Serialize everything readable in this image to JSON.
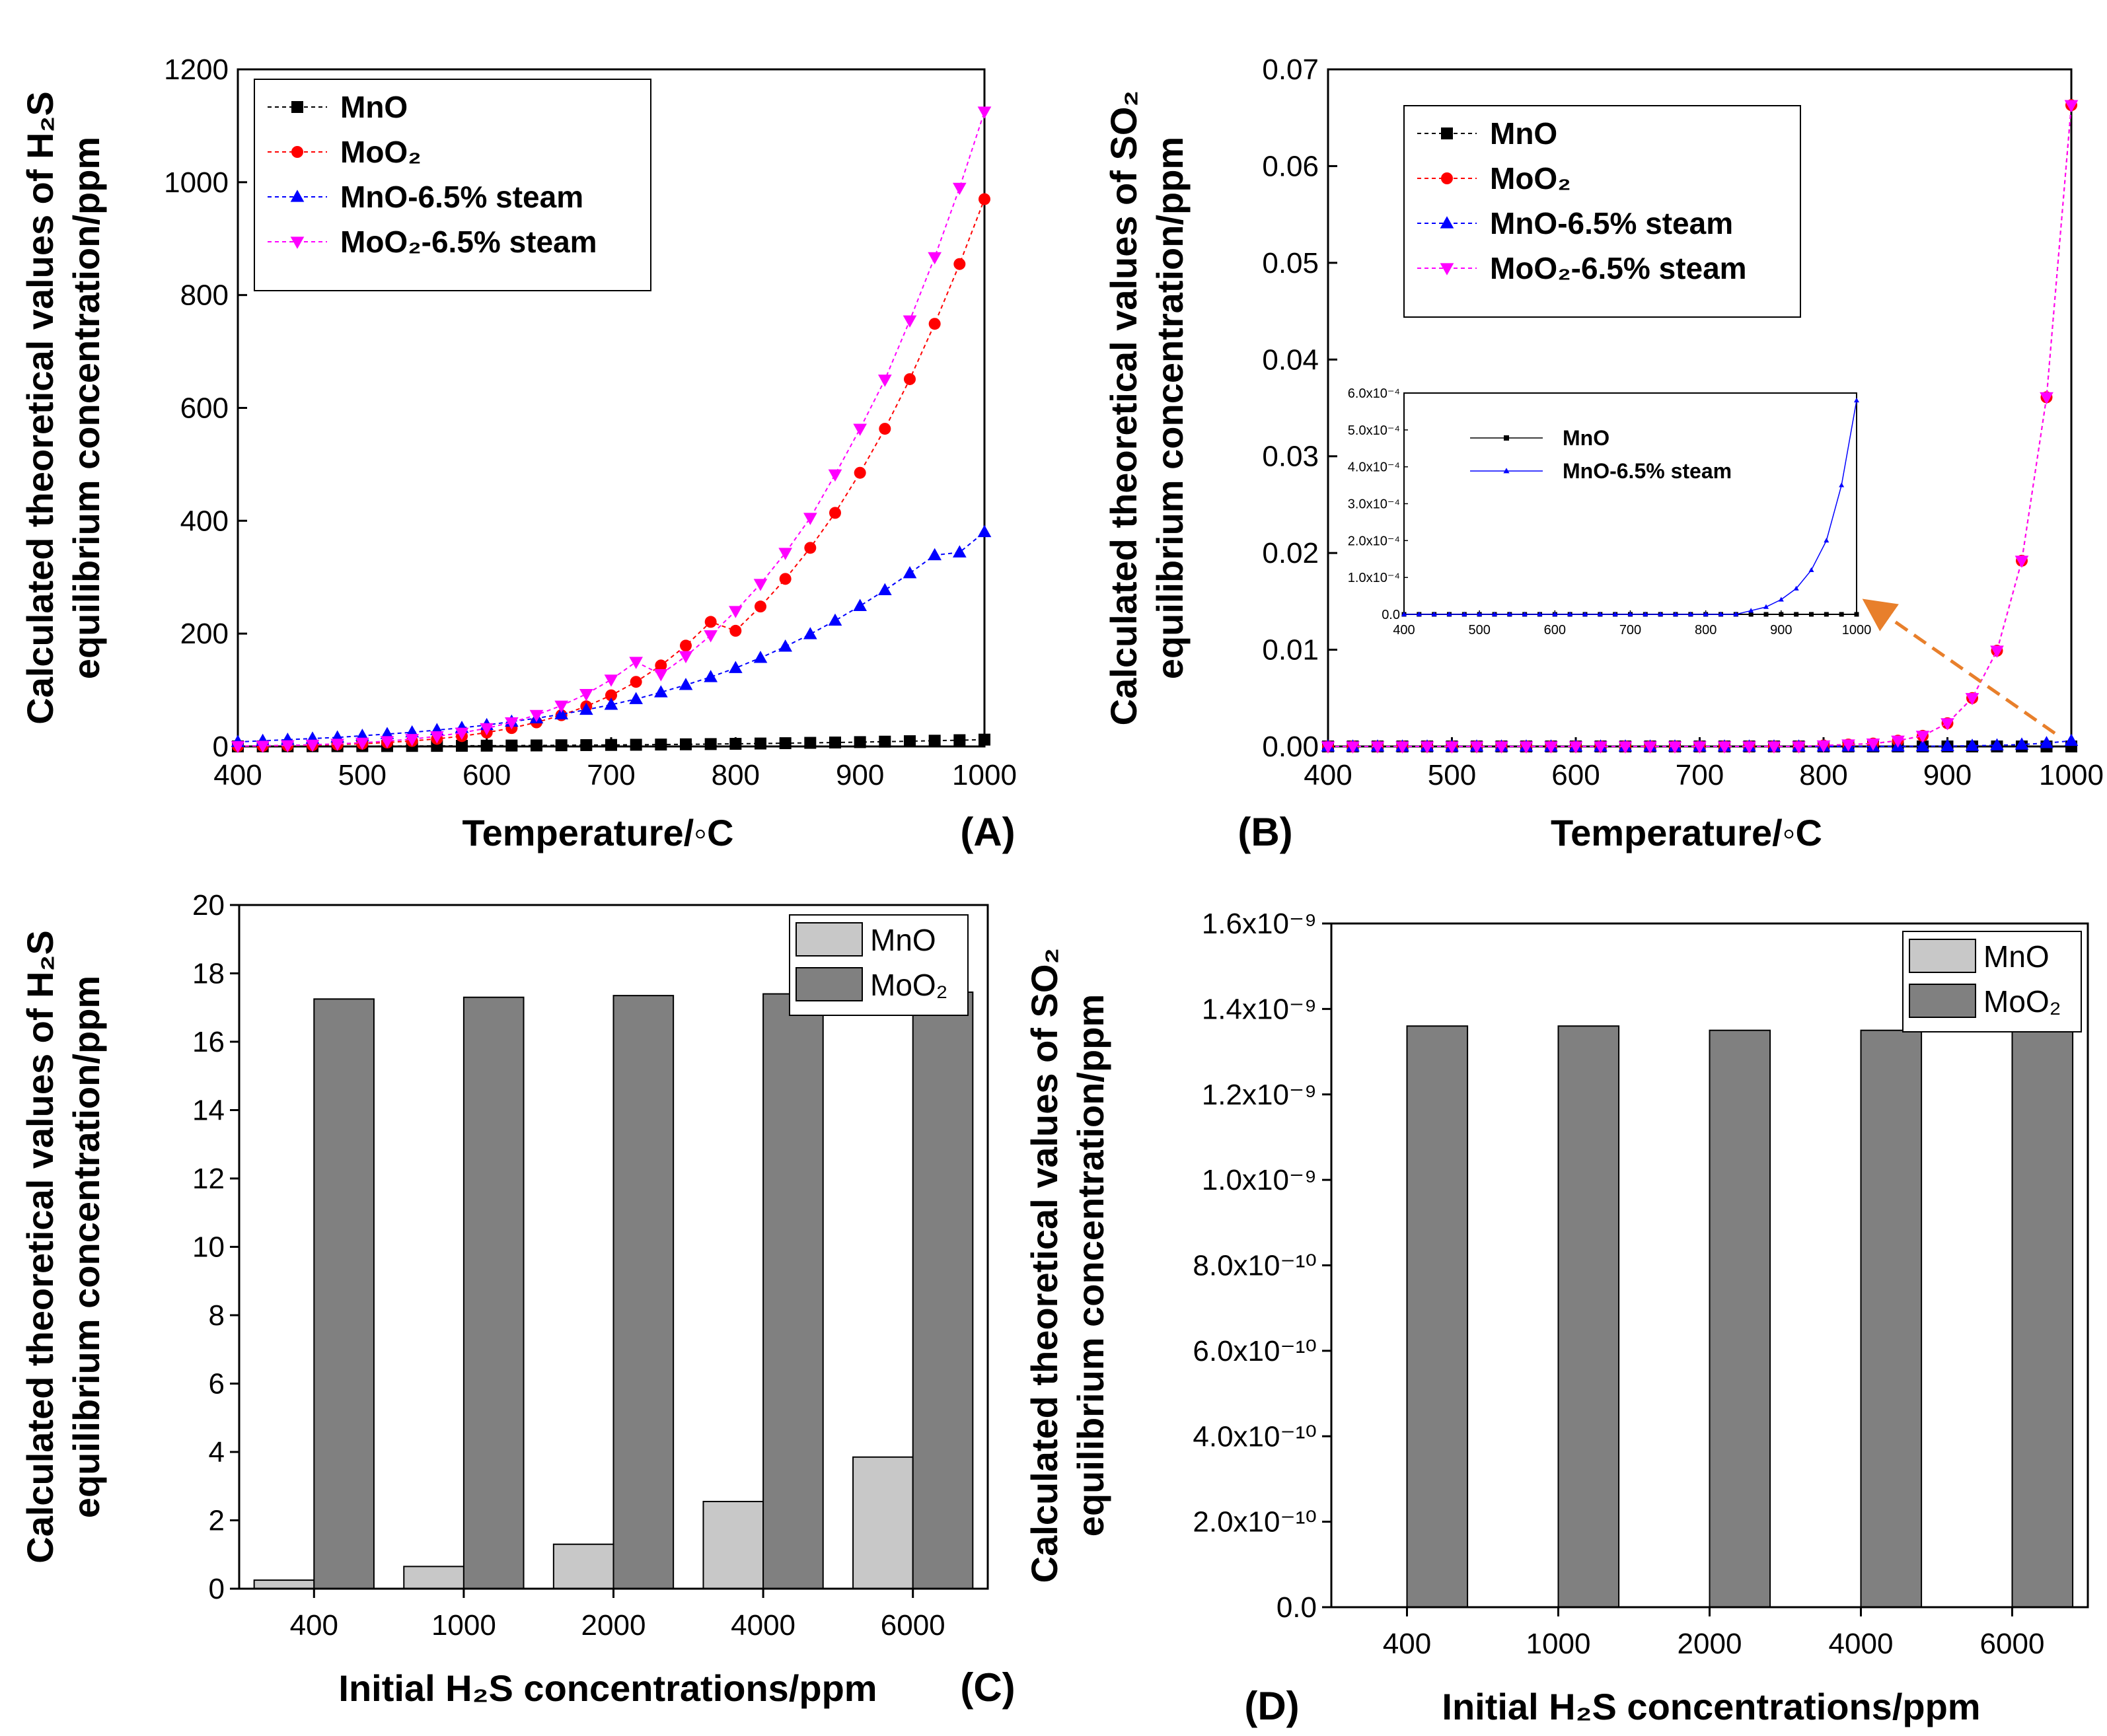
{
  "chart_data": [
    {
      "panel": "A",
      "type": "line",
      "panel_label": "(A)",
      "xlabel": "Temperature/◦C",
      "ylabel_line1": "Calculated theoretical values of H₂S",
      "ylabel_line2": "equilibrium concentration/ppm",
      "xlim": [
        400,
        1000
      ],
      "ylim": [
        0,
        1200
      ],
      "xticks": [
        "400",
        "500",
        "600",
        "700",
        "800",
        "900",
        "1000"
      ],
      "yticks": [
        "0",
        "200",
        "400",
        "600",
        "800",
        "1000",
        "1200"
      ],
      "x": [
        400,
        420,
        440,
        460,
        480,
        500,
        520,
        540,
        560,
        580,
        600,
        620,
        640,
        660,
        680,
        700,
        720,
        740,
        760,
        780,
        800,
        820,
        840,
        860,
        880,
        900,
        920,
        940,
        960,
        980,
        1000
      ],
      "legend": [
        "MnO",
        "MoO₂",
        "MnO-6.5% steam",
        "MoO₂-6.5% steam"
      ],
      "series": [
        {
          "name": "MnO",
          "color": "#000000",
          "marker": "square",
          "values": [
            0.1,
            0.2,
            0.3,
            0.4,
            0.5,
            0.6,
            0.7,
            0.9,
            1.0,
            1.2,
            1.4,
            1.6,
            1.8,
            2.1,
            2.4,
            2.7,
            3.0,
            3.4,
            3.8,
            4.2,
            4.7,
            5.2,
            5.8,
            6.4,
            7.0,
            7.7,
            8.5,
            9.3,
            10.2,
            11.1,
            12.1
          ]
        },
        {
          "name": "MoO₂",
          "color": "#ff0000",
          "marker": "circle",
          "values": [
            0.5,
            1.0,
            1.5,
            2.3,
            3.4,
            4.9,
            7.0,
            9.8,
            13.5,
            18.3,
            24.6,
            32.6,
            42.7,
            55.4,
            71.1,
            90.6,
            114.5,
            143.5,
            178.7,
            220.8,
            205,
            248,
            297,
            352,
            414,
            485,
            563,
            651,
            749,
            855,
            970
          ]
        },
        {
          "name": "MnO-6.5% steam",
          "color": "#0000ff",
          "marker": "triangle-up",
          "values": [
            8,
            10,
            12,
            14,
            16,
            19,
            22,
            25,
            29,
            33,
            38,
            44,
            50,
            57,
            65,
            74,
            84,
            96,
            109,
            123,
            139,
            157,
            177,
            199,
            223,
            249,
            277,
            307,
            339,
            344,
            380
          ]
        },
        {
          "name": "MoO₂-6.5% steam",
          "color": "#ff00ff",
          "marker": "triangle-down",
          "values": [
            0.6,
            1.2,
            2.0,
            3.1,
            4.6,
            6.6,
            9.4,
            13.1,
            17.9,
            24.2,
            32.3,
            42.7,
            55.8,
            72.3,
            92.9,
            118.4,
            149.8,
            128,
            160,
            197,
            240,
            288,
            343,
            405,
            482,
            563,
            650,
            755,
            867,
            990,
            1125
          ]
        }
      ]
    },
    {
      "panel": "B",
      "type": "line",
      "panel_label": "(B)",
      "xlabel": "Temperature/◦C",
      "ylabel_line1": "Calculated theoretical values of SO₂",
      "ylabel_line2": "equilibrium concentration/ppm",
      "xlim": [
        400,
        1000
      ],
      "ylim": [
        0,
        0.07
      ],
      "xticks": [
        "400",
        "500",
        "600",
        "700",
        "800",
        "900",
        "1000"
      ],
      "yticks": [
        "0.00",
        "0.01",
        "0.02",
        "0.03",
        "0.04",
        "0.05",
        "0.06",
        "0.07"
      ],
      "x": [
        400,
        420,
        440,
        460,
        480,
        500,
        520,
        540,
        560,
        580,
        600,
        620,
        640,
        660,
        680,
        700,
        720,
        740,
        760,
        780,
        800,
        820,
        840,
        860,
        880,
        900,
        920,
        940,
        960,
        980,
        1000
      ],
      "legend": [
        "MnO",
        "MoO₂",
        "MnO-6.5% steam",
        "MoO₂-6.5% steam"
      ],
      "series": [
        {
          "name": "MnO",
          "color": "#000000",
          "marker": "square",
          "values": [
            0,
            0,
            0,
            0,
            0,
            0,
            0,
            0,
            0,
            0,
            0,
            0,
            0,
            0,
            0,
            0,
            0,
            0,
            0,
            0,
            0,
            0,
            0,
            0,
            0,
            0,
            0,
            0,
            0,
            0,
            0
          ]
        },
        {
          "name": "MoO₂",
          "color": "#ff0000",
          "marker": "circle",
          "values": [
            0,
            0,
            0,
            0,
            0,
            0,
            0,
            0,
            0,
            0,
            0,
            0,
            0,
            0,
            0,
            0,
            0,
            0,
            0,
            0,
            0.0001,
            0.0002,
            0.0003,
            0.0006,
            0.0011,
            0.0024,
            0.005,
            0.0099,
            0.0192,
            0.0361,
            0.0663
          ]
        },
        {
          "name": "MnO-6.5% steam",
          "color": "#0000ff",
          "marker": "triangle-up",
          "values": [
            0,
            0,
            0,
            0,
            0,
            0,
            0,
            0,
            0,
            0,
            0,
            0,
            0,
            0,
            0,
            0,
            0,
            0,
            0,
            0,
            0,
            0,
            0,
            1e-05,
            2e-05,
            4e-05,
            7e-05,
            0.00012,
            0.0002,
            0.00035,
            0.00058
          ]
        },
        {
          "name": "MoO₂-6.5% steam",
          "color": "#ff00ff",
          "marker": "triangle-down",
          "values": [
            0,
            0,
            0,
            0,
            0,
            0,
            0,
            0,
            0,
            0,
            0,
            0,
            0,
            0,
            0,
            0,
            0,
            0,
            0,
            0,
            0.0001,
            0.0002,
            0.0003,
            0.0006,
            0.0011,
            0.0024,
            0.005,
            0.0099,
            0.0192,
            0.0361,
            0.0663
          ]
        }
      ],
      "inset": {
        "xlim": [
          400,
          1000
        ],
        "ylim": [
          0,
          0.0006
        ],
        "xticks": [
          "400",
          "500",
          "600",
          "700",
          "800",
          "900",
          "1000"
        ],
        "yticks": [
          "0.0",
          "1.0x10⁻⁴",
          "2.0x10⁻⁴",
          "3.0x10⁻⁴",
          "4.0x10⁻⁴",
          "5.0x10⁻⁴",
          "6.0x10⁻⁴"
        ],
        "legend": [
          "MnO",
          "MnO-6.5% steam"
        ]
      }
    },
    {
      "panel": "C",
      "type": "bar",
      "panel_label": "(C)",
      "xlabel": "Initial H₂S concentrations/ppm",
      "ylabel_line1": "Calculated theoretical values of H₂S",
      "ylabel_line2": "equilibrium concentration/ppm",
      "categories": [
        "400",
        "1000",
        "2000",
        "4000",
        "6000"
      ],
      "ylim": [
        0,
        20
      ],
      "yticks": [
        "0",
        "2",
        "4",
        "6",
        "8",
        "10",
        "12",
        "14",
        "16",
        "18",
        "20"
      ],
      "legend": [
        "MnO",
        "MoO₂"
      ],
      "series": [
        {
          "name": "MnO",
          "color": "#c8c8c8",
          "values": [
            0.25,
            0.65,
            1.3,
            2.55,
            3.85
          ]
        },
        {
          "name": "MoO₂",
          "color": "#808080",
          "values": [
            17.25,
            17.3,
            17.35,
            17.4,
            17.45
          ]
        }
      ]
    },
    {
      "panel": "D",
      "type": "bar",
      "panel_label": "(D)",
      "xlabel": "Initial H₂S concentrations/ppm",
      "ylabel_line1": "Calculated theoretical values of SO₂",
      "ylabel_line2": "equilibrium concentration/ppm",
      "categories": [
        "400",
        "1000",
        "2000",
        "4000",
        "6000"
      ],
      "ylim": [
        0,
        1.6e-09
      ],
      "yticks": [
        "0.0",
        "2.0x10⁻¹⁰",
        "4.0x10⁻¹⁰",
        "6.0x10⁻¹⁰",
        "8.0x10⁻¹⁰",
        "1.0x10⁻⁹",
        "1.2x10⁻⁹",
        "1.4x10⁻⁹",
        "1.6x10⁻⁹"
      ],
      "legend": [
        "MnO",
        "MoO₂"
      ],
      "series": [
        {
          "name": "MnO",
          "color": "#c8c8c8",
          "values": [
            0,
            0,
            0,
            0,
            0
          ]
        },
        {
          "name": "MoO₂",
          "color": "#808080",
          "values": [
            1.36e-09,
            1.36e-09,
            1.35e-09,
            1.35e-09,
            1.36e-09
          ]
        }
      ]
    }
  ]
}
